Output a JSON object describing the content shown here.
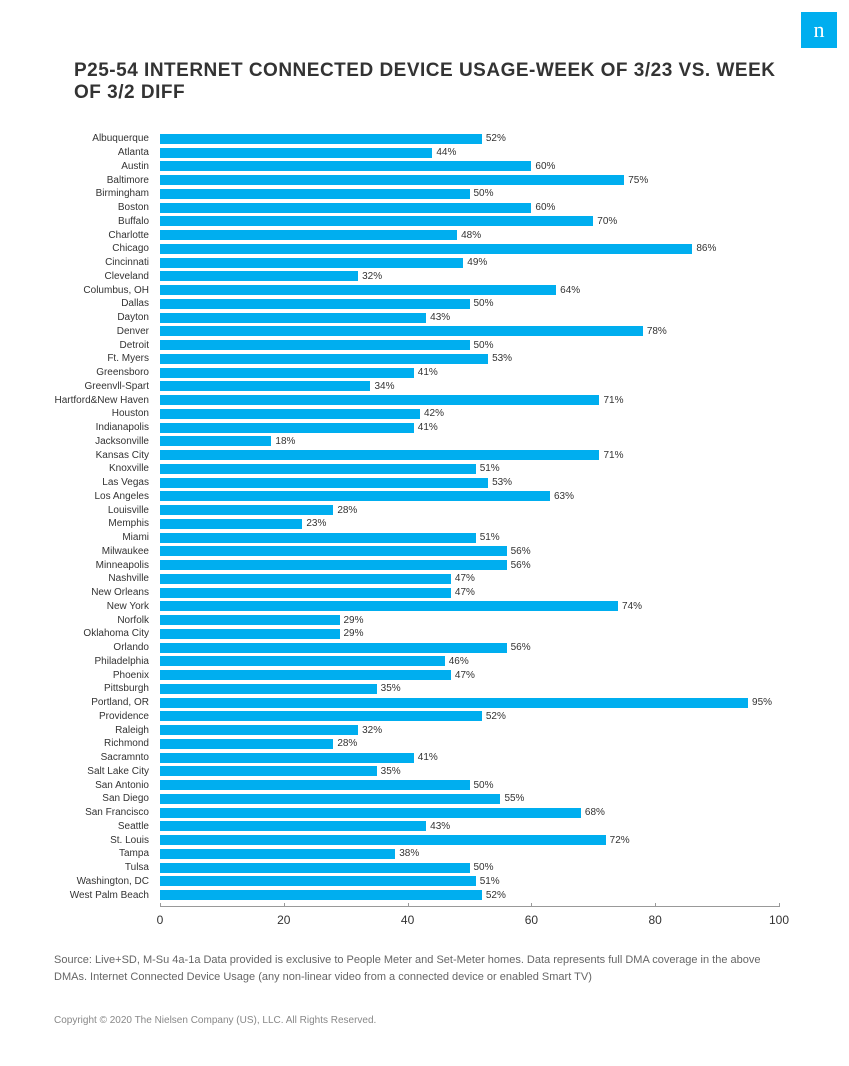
{
  "logo_letter": "n",
  "title": "P25-54 INTERNET CONNECTED DEVICE USAGE-WEEK OF 3/23 VS. WEEK OF 3/2 DIFF",
  "chart": {
    "type": "bar",
    "orientation": "horizontal",
    "bar_color": "#00aeef",
    "background_color": "#ffffff",
    "label_fontsize": 10,
    "value_fontsize": 10,
    "xlim": [
      0,
      100
    ],
    "xtick_step": 20,
    "xticks": [
      "0",
      "20",
      "40",
      "60",
      "80",
      "100"
    ],
    "items": [
      {
        "label": "Albuquerque",
        "value": 52
      },
      {
        "label": "Atlanta",
        "value": 44
      },
      {
        "label": "Austin",
        "value": 60
      },
      {
        "label": "Baltimore",
        "value": 75
      },
      {
        "label": "Birmingham",
        "value": 50
      },
      {
        "label": "Boston",
        "value": 60
      },
      {
        "label": "Buffalo",
        "value": 70
      },
      {
        "label": "Charlotte",
        "value": 48
      },
      {
        "label": "Chicago",
        "value": 86
      },
      {
        "label": "Cincinnati",
        "value": 49
      },
      {
        "label": "Cleveland",
        "value": 32
      },
      {
        "label": "Columbus, OH",
        "value": 64
      },
      {
        "label": "Dallas",
        "value": 50
      },
      {
        "label": "Dayton",
        "value": 43
      },
      {
        "label": "Denver",
        "value": 78
      },
      {
        "label": "Detroit",
        "value": 50
      },
      {
        "label": "Ft. Myers",
        "value": 53
      },
      {
        "label": "Greensboro",
        "value": 41
      },
      {
        "label": "Greenvll-Spart",
        "value": 34
      },
      {
        "label": "Hartford&New Haven",
        "value": 71
      },
      {
        "label": "Houston",
        "value": 42
      },
      {
        "label": "Indianapolis",
        "value": 41
      },
      {
        "label": "Jacksonville",
        "value": 18
      },
      {
        "label": "Kansas City",
        "value": 71
      },
      {
        "label": "Knoxville",
        "value": 51
      },
      {
        "label": "Las Vegas",
        "value": 53
      },
      {
        "label": "Los Angeles",
        "value": 63
      },
      {
        "label": "Louisville",
        "value": 28
      },
      {
        "label": "Memphis",
        "value": 23
      },
      {
        "label": "Miami",
        "value": 51
      },
      {
        "label": "Milwaukee",
        "value": 56
      },
      {
        "label": "Minneapolis",
        "value": 56
      },
      {
        "label": "Nashville",
        "value": 47
      },
      {
        "label": "New Orleans",
        "value": 47
      },
      {
        "label": "New York",
        "value": 74
      },
      {
        "label": "Norfolk",
        "value": 29
      },
      {
        "label": "Oklahoma City",
        "value": 29
      },
      {
        "label": "Orlando",
        "value": 56
      },
      {
        "label": "Philadelphia",
        "value": 46
      },
      {
        "label": "Phoenix",
        "value": 47
      },
      {
        "label": "Pittsburgh",
        "value": 35
      },
      {
        "label": "Portland, OR",
        "value": 95
      },
      {
        "label": "Providence",
        "value": 52
      },
      {
        "label": "Raleigh",
        "value": 32
      },
      {
        "label": "Richmond",
        "value": 28
      },
      {
        "label": "Sacramnto",
        "value": 41
      },
      {
        "label": "Salt Lake City",
        "value": 35
      },
      {
        "label": "San Antonio",
        "value": 50
      },
      {
        "label": "San Diego",
        "value": 55
      },
      {
        "label": "San Francisco",
        "value": 68
      },
      {
        "label": "Seattle",
        "value": 43
      },
      {
        "label": "St. Louis",
        "value": 72
      },
      {
        "label": "Tampa",
        "value": 38
      },
      {
        "label": "Tulsa",
        "value": 50
      },
      {
        "label": "Washington, DC",
        "value": 51
      },
      {
        "label": "West Palm Beach",
        "value": 52
      }
    ]
  },
  "source_text": "Source: Live+SD, M-Su 4a-1a Data provided is exclusive to People Meter and Set-Meter homes. Data represents full DMA coverage in the above DMAs. Internet Connected Device Usage (any non-linear video from a connected device or enabled Smart TV)",
  "copyright_text": "Copyright © 2020 The Nielsen Company (US), LLC. All Rights Reserved."
}
